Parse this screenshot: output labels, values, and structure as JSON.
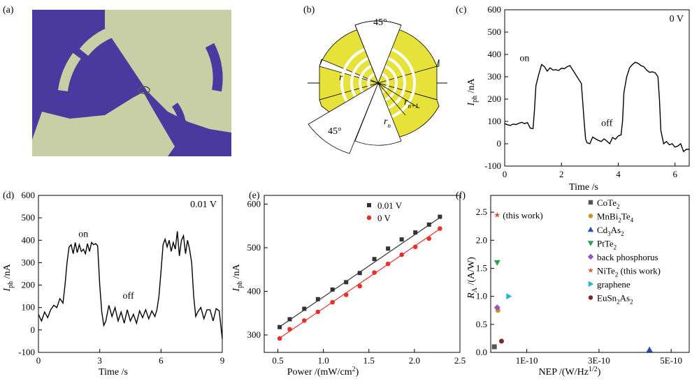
{
  "panels": {
    "a": {
      "label": "(a)",
      "description_icon": "micrograph-image"
    },
    "b": {
      "label": "(b)",
      "angle_top": "45°",
      "angle_bottom": "45°",
      "r_label": "r",
      "rn1_main": "r",
      "rn1_sub": "n+1",
      "rn_main": "r",
      "rn_sub": "n"
    }
  },
  "colors": {
    "purple_bg": "#4a3aa0",
    "electrode": "#c9cfa4",
    "gold": "#e6e23a",
    "series_black": "#333333",
    "series_red": "#e8302a"
  },
  "chart_data": [
    {
      "id": "c",
      "panel_label": "(c)",
      "type": "line",
      "annotation_bias": "0 V",
      "on_label": "on",
      "off_label": "off",
      "xlabel": "Time /s",
      "ylabel_main": "I",
      "ylabel_sub": "ph",
      "ylabel_unit": " /nA",
      "xlim": [
        0,
        6.5
      ],
      "ylim": [
        -100,
        600
      ],
      "xticks": [
        0,
        2,
        4,
        6
      ],
      "yticks": [
        -100,
        0,
        100,
        200,
        300,
        400,
        500,
        600
      ],
      "x": [
        0,
        0.1,
        0.2,
        0.3,
        0.4,
        0.5,
        0.6,
        0.7,
        0.8,
        0.9,
        1.0,
        1.05,
        1.1,
        1.2,
        1.3,
        1.4,
        1.5,
        1.6,
        1.7,
        1.8,
        1.9,
        2.0,
        2.1,
        2.2,
        2.3,
        2.4,
        2.5,
        2.6,
        2.7,
        2.8,
        2.85,
        2.9,
        3.0,
        3.1,
        3.2,
        3.3,
        3.4,
        3.5,
        3.6,
        3.7,
        3.8,
        3.9,
        4.0,
        4.1,
        4.15,
        4.2,
        4.3,
        4.4,
        4.5,
        4.6,
        4.7,
        4.8,
        4.9,
        5.0,
        5.1,
        5.2,
        5.3,
        5.4,
        5.45,
        5.5,
        5.6,
        5.7,
        5.8,
        5.9,
        6.0,
        6.1,
        6.2,
        6.3,
        6.4,
        6.5
      ],
      "y": [
        90,
        85,
        82,
        88,
        86,
        92,
        96,
        90,
        95,
        70,
        68,
        150,
        260,
        310,
        355,
        345,
        325,
        340,
        330,
        332,
        328,
        338,
        336,
        345,
        350,
        330,
        310,
        290,
        270,
        100,
        20,
        5,
        0,
        30,
        22,
        15,
        10,
        22,
        12,
        0,
        28,
        20,
        35,
        40,
        100,
        230,
        300,
        340,
        355,
        365,
        360,
        350,
        345,
        330,
        320,
        322,
        318,
        300,
        200,
        60,
        0,
        10,
        -5,
        0,
        -15,
        -10,
        0,
        -35,
        -25,
        -25
      ]
    },
    {
      "id": "d",
      "panel_label": "(d)",
      "type": "line",
      "annotation_bias": "0.01 V",
      "on_label": "on",
      "off_label": "off",
      "xlabel": "Time /s",
      "ylabel_main": "I",
      "ylabel_sub": "ph",
      "ylabel_unit": " /nA",
      "xlim": [
        0,
        9
      ],
      "ylim": [
        -100,
        600
      ],
      "xticks": [
        0,
        3,
        6,
        9
      ],
      "yticks": [
        -100,
        0,
        100,
        200,
        300,
        400,
        500,
        600
      ],
      "x": [
        0,
        0.15,
        0.3,
        0.45,
        0.6,
        0.75,
        0.9,
        1.05,
        1.2,
        1.3,
        1.4,
        1.5,
        1.6,
        1.7,
        1.8,
        1.9,
        2.0,
        2.1,
        2.2,
        2.3,
        2.4,
        2.5,
        2.6,
        2.7,
        2.8,
        2.9,
        3.0,
        3.1,
        3.2,
        3.3,
        3.45,
        3.6,
        3.75,
        3.9,
        4.05,
        4.2,
        4.35,
        4.5,
        4.65,
        4.8,
        4.95,
        5.1,
        5.25,
        5.4,
        5.55,
        5.7,
        5.8,
        5.9,
        6.0,
        6.1,
        6.2,
        6.3,
        6.4,
        6.5,
        6.6,
        6.7,
        6.8,
        6.9,
        7.0,
        7.1,
        7.2,
        7.3,
        7.4,
        7.5,
        7.6,
        7.7,
        7.8,
        7.95,
        8.1,
        8.25,
        8.4,
        8.55,
        8.7,
        8.85,
        9.0
      ],
      "y": [
        70,
        40,
        80,
        55,
        90,
        110,
        100,
        140,
        120,
        200,
        300,
        370,
        380,
        340,
        390,
        345,
        380,
        350,
        360,
        340,
        385,
        350,
        390,
        380,
        385,
        375,
        200,
        80,
        20,
        40,
        110,
        60,
        100,
        40,
        80,
        30,
        90,
        40,
        70,
        30,
        85,
        55,
        90,
        50,
        85,
        60,
        90,
        150,
        260,
        380,
        405,
        370,
        400,
        350,
        390,
        360,
        440,
        330,
        400,
        420,
        340,
        400,
        360,
        300,
        150,
        60,
        80,
        100,
        50,
        90,
        90,
        40,
        95,
        85,
        -40
      ]
    },
    {
      "id": "e",
      "panel_label": "(e)",
      "type": "scatter",
      "xlabel": "Power /(mW/cm",
      "xlabel_sup": "2",
      "xlabel_close": ")",
      "ylabel_main": "I",
      "ylabel_sub": "ph",
      "ylabel_unit": " /nA",
      "xlim": [
        0.35,
        2.5
      ],
      "ylim": [
        260,
        620
      ],
      "xticks": [
        0.5,
        1.0,
        1.5,
        2.0,
        2.5
      ],
      "yticks": [
        300,
        400,
        500,
        600
      ],
      "legend_position": "top-right",
      "series": [
        {
          "name": "0.01 V",
          "marker": "square",
          "color": "#333333",
          "x": [
            0.52,
            0.63,
            0.79,
            0.94,
            1.1,
            1.25,
            1.4,
            1.56,
            1.71,
            1.86,
            2.01,
            2.16,
            2.28
          ],
          "y": [
            318,
            336,
            360,
            382,
            404,
            421,
            442,
            474,
            498,
            519,
            535,
            553,
            571
          ]
        },
        {
          "name": "0 V",
          "marker": "circle",
          "color": "#e8302a",
          "x": [
            0.52,
            0.63,
            0.79,
            0.94,
            1.1,
            1.25,
            1.4,
            1.56,
            1.71,
            1.86,
            2.01,
            2.16,
            2.28
          ],
          "y": [
            292,
            313,
            333,
            353,
            375,
            392,
            412,
            443,
            463,
            484,
            502,
            521,
            544
          ]
        }
      ],
      "fits": [
        {
          "series": "0.01 V",
          "x": [
            0.5,
            2.3
          ],
          "y": [
            316,
            572
          ]
        },
        {
          "series": "0 V",
          "x": [
            0.5,
            2.3
          ],
          "y": [
            290,
            546
          ]
        }
      ]
    },
    {
      "id": "f",
      "panel_label": "(f)",
      "type": "scatter",
      "xlabel": "NEP /(W/Hz",
      "xlabel_sup": "1/2",
      "xlabel_close": ")",
      "ylabel_main": "R",
      "ylabel_sub": "A",
      "ylabel_unit": " /(A/W)",
      "xlim": [
        0,
        5.5e-10
      ],
      "ylim": [
        0,
        2.8
      ],
      "xticks": [
        1e-10,
        3e-10,
        5e-10
      ],
      "xtick_labels": [
        "1E-10",
        "3E-10",
        "5E-10"
      ],
      "yticks": [
        0,
        0.5,
        1.0,
        1.5,
        2.0,
        2.5
      ],
      "annotation": "(this work)",
      "points": [
        {
          "name": "CoTe",
          "sub": "2",
          "after": "",
          "marker": "square",
          "color": "#555555",
          "x": 1e-11,
          "y": 0.1
        },
        {
          "name": "MnBi",
          "sub": "2",
          "after": "Te",
          "sub2": "4",
          "marker": "circle",
          "color": "#c8961a",
          "x": 2e-11,
          "y": 0.75
        },
        {
          "name": "Cd",
          "sub": "3",
          "after": "As",
          "sub2": "2",
          "marker": "triangle-up",
          "color": "#2a50b8",
          "x": 4.4e-10,
          "y": 0.05
        },
        {
          "name": "PtTe",
          "sub": "2",
          "after": "",
          "marker": "triangle-down",
          "color": "#2aa04a",
          "x": 1.8e-11,
          "y": 1.6
        },
        {
          "name": "back phosphorus",
          "sub": "",
          "after": "",
          "marker": "diamond",
          "color": "#9a4fc8",
          "x": 1.8e-11,
          "y": 0.8
        },
        {
          "name": "NiTe",
          "sub": "2",
          "after": " (this work)",
          "marker": "star",
          "color": "#e24a1a",
          "x": 1.8e-11,
          "y": 2.45
        },
        {
          "name": "graphene",
          "sub": "",
          "after": "",
          "marker": "triangle-right",
          "color": "#2ab4c8",
          "x": 5e-11,
          "y": 1.0
        },
        {
          "name": "EuSn",
          "sub": "2",
          "after": "As",
          "sub2": "2",
          "marker": "circle",
          "color": "#7a2a2a",
          "x": 3e-11,
          "y": 0.2
        }
      ]
    }
  ]
}
